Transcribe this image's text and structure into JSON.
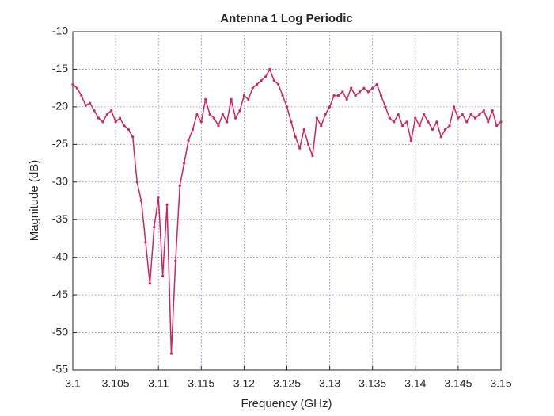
{
  "chart_data": {
    "type": "line",
    "title": "Antenna 1 Log Periodic",
    "x_label": "Frequency (GHz)",
    "y_label": "Magnitude (dB)",
    "x": [
      3.1,
      3.1005,
      3.101,
      3.1015,
      3.102,
      3.1025,
      3.103,
      3.1035,
      3.104,
      3.1045,
      3.105,
      3.1055,
      3.106,
      3.1065,
      3.107,
      3.1075,
      3.108,
      3.1085,
      3.109,
      3.1095,
      3.11,
      3.1105,
      3.111,
      3.1115,
      3.112,
      3.1125,
      3.113,
      3.1135,
      3.114,
      3.1145,
      3.115,
      3.1155,
      3.116,
      3.1165,
      3.117,
      3.1175,
      3.118,
      3.1185,
      3.119,
      3.1195,
      3.12,
      3.1205,
      3.121,
      3.1215,
      3.122,
      3.1225,
      3.123,
      3.1235,
      3.124,
      3.1245,
      3.125,
      3.1255,
      3.126,
      3.1265,
      3.127,
      3.1275,
      3.128,
      3.1285,
      3.129,
      3.1295,
      3.13,
      3.1305,
      3.131,
      3.1315,
      3.132,
      3.1325,
      3.133,
      3.1335,
      3.134,
      3.1345,
      3.135,
      3.1355,
      3.136,
      3.1365,
      3.137,
      3.1375,
      3.138,
      3.1385,
      3.139,
      3.1395,
      3.14,
      3.1405,
      3.141,
      3.1415,
      3.142,
      3.1425,
      3.143,
      3.1435,
      3.144,
      3.1445,
      3.145,
      3.1455,
      3.146,
      3.1465,
      3.147,
      3.1475,
      3.148,
      3.1485,
      3.149,
      3.1495,
      3.15
    ],
    "values": [
      -17,
      -17.5,
      -18.5,
      -19.8,
      -19.5,
      -20.5,
      -21.5,
      -22,
      -21,
      -20.5,
      -22,
      -21.5,
      -22.5,
      -23,
      -24,
      -30,
      -32.5,
      -38,
      -43.5,
      -36,
      -32,
      -42.5,
      -33,
      -52.8,
      -40.5,
      -30.5,
      -27.5,
      -24.5,
      -23,
      -21,
      -22,
      -19,
      -21,
      -21.5,
      -22.5,
      -21,
      -22,
      -19,
      -21.5,
      -20.5,
      -18.5,
      -19,
      -17.5,
      -17,
      -16.5,
      -16,
      -15,
      -16.5,
      -17,
      -18.5,
      -20,
      -22,
      -24,
      -25.5,
      -23,
      -25,
      -26.5,
      -21.5,
      -22.5,
      -21,
      -20,
      -18.5,
      -18.5,
      -18,
      -19,
      -17.5,
      -18.5,
      -18,
      -17.5,
      -18,
      -17.5,
      -17,
      -18.5,
      -20,
      -21.5,
      -22,
      -21,
      -22.5,
      -22,
      -24.5,
      -21.5,
      -22.5,
      -21,
      -22,
      -23,
      -22,
      -24,
      -23,
      -22.5,
      -20,
      -21.5,
      -21,
      -22,
      -21,
      -21.5,
      -21,
      -20.5,
      -22,
      -20.5,
      -22.5,
      -22
    ],
    "color": "#d4245a",
    "xlim": [
      3.1,
      3.15
    ],
    "xticks": [
      3.1,
      3.105,
      3.11,
      3.115,
      3.12,
      3.125,
      3.13,
      3.135,
      3.14,
      3.145,
      3.15
    ],
    "ylim": [
      -55,
      -10
    ],
    "yticks": [
      -10,
      -15,
      -20,
      -25,
      -30,
      -35,
      -40,
      -45,
      -50,
      -55
    ],
    "grid": true
  }
}
